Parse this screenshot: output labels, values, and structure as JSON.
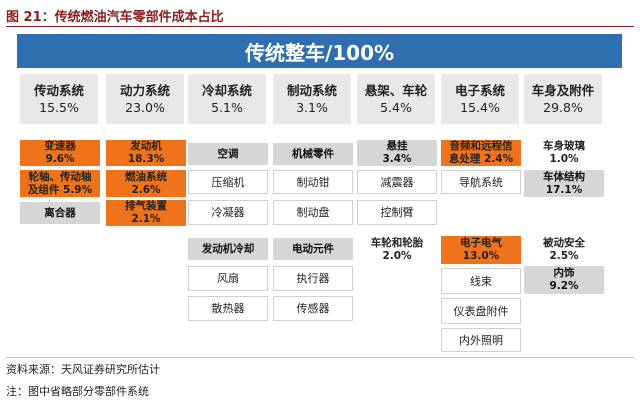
{
  "title": "图 21：传统燃油汽车零部件成本占比",
  "banner": "传统整车/100%",
  "categories": [
    {
      "name": "传动系统",
      "pct": "15.5%"
    },
    {
      "name": "动力系统",
      "pct": "23.0%"
    },
    {
      "name": "冷却系统",
      "pct": "5.1%"
    },
    {
      "name": "制动系统",
      "pct": "3.1%"
    },
    {
      "name": "悬架、车轮",
      "pct": "5.4%"
    },
    {
      "name": "电子系统",
      "pct": "15.4%"
    },
    {
      "name": "车身及附件",
      "pct": "29.8%"
    }
  ],
  "parts": {
    "p1": "变速器",
    "p1v": "9.6%",
    "p2a": "轮轴、传动轴",
    "p2b": "及组件 5.9%",
    "p3": "离合器",
    "p4": "发动机",
    "p4v": "18.3%",
    "p5": "燃油系统",
    "p5v": "2.6%",
    "p6": "排气装置",
    "p6v": "2.1%",
    "p7": "空调",
    "p8": "压缩机",
    "p9": "冷凝器",
    "p10": "发动机冷却",
    "p11": "风扇",
    "p12": "散热器",
    "p13": "机械零件",
    "p14": "制动钳",
    "p15": "制动盘",
    "p16": "电动元件",
    "p17": "执行器",
    "p18": "传感器",
    "p19": "悬挂",
    "p19v": "3.4%",
    "p20": "减震器",
    "p21": "控制臂",
    "p22": "车轮和轮胎",
    "p22v": "2.0%",
    "p23a": "音频和远程信",
    "p23b": "息处理 2.4%",
    "p24": "导航系统",
    "p25": "电子电气",
    "p25v": "13.0%",
    "p26": "线束",
    "p27": "仪表盘附件",
    "p28": "内外照明",
    "p29": "车身玻璃",
    "p29v": "1.0%",
    "p30": "车体结构",
    "p30v": "17.1%",
    "p31": "被动安全",
    "p31v": "2.5%",
    "p32": "内饰",
    "p32v": "9.2%"
  },
  "footer": {
    "source": "资料来源：天风证券研究所估计",
    "note": "注：图中省略部分零部件系统"
  },
  "colors": {
    "banner": "#2f6fb0",
    "highlight": "#f0731c",
    "title": "#8a1d1d"
  }
}
